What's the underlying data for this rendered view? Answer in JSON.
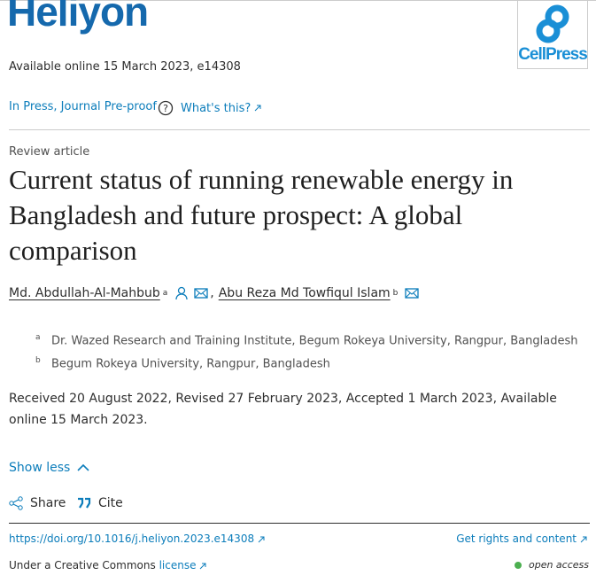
{
  "journal": {
    "name": "Heliyon",
    "availability": "Available online 15 March 2023, e14308",
    "publisher_logo": "CellPress"
  },
  "status": {
    "label": "In Press, Journal Pre-proof",
    "help": "What's this?"
  },
  "article": {
    "type": "Review article",
    "title": "Current status of running renewable energy in Bangladesh and future prospect: A global comparison"
  },
  "authors": [
    {
      "name": "Md. Abdullah-Al-Mahbub",
      "affiliation": "a"
    },
    {
      "name": "Abu Reza Md Towfiqul Islam",
      "affiliation": "b"
    }
  ],
  "author_separator": ",",
  "affiliations": [
    {
      "label": "a",
      "text": "Dr. Wazed Research and Training Institute, Begum Rokeya University, Rangpur, Bangladesh"
    },
    {
      "label": "b",
      "text": "Begum Rokeya University, Rangpur, Bangladesh"
    }
  ],
  "history": "Received 20 August 2022, Revised 27 February 2023, Accepted 1 March 2023, Available online 15 March 2023.",
  "actions": {
    "toggle": "Show less",
    "share": "Share",
    "cite": "Cite"
  },
  "footer": {
    "doi": "https://doi.org/10.1016/j.heliyon.2023.e14308",
    "rights": "Get rights and content",
    "license_prefix": "Under a Creative Commons",
    "license_link": "license",
    "access": "open access"
  }
}
